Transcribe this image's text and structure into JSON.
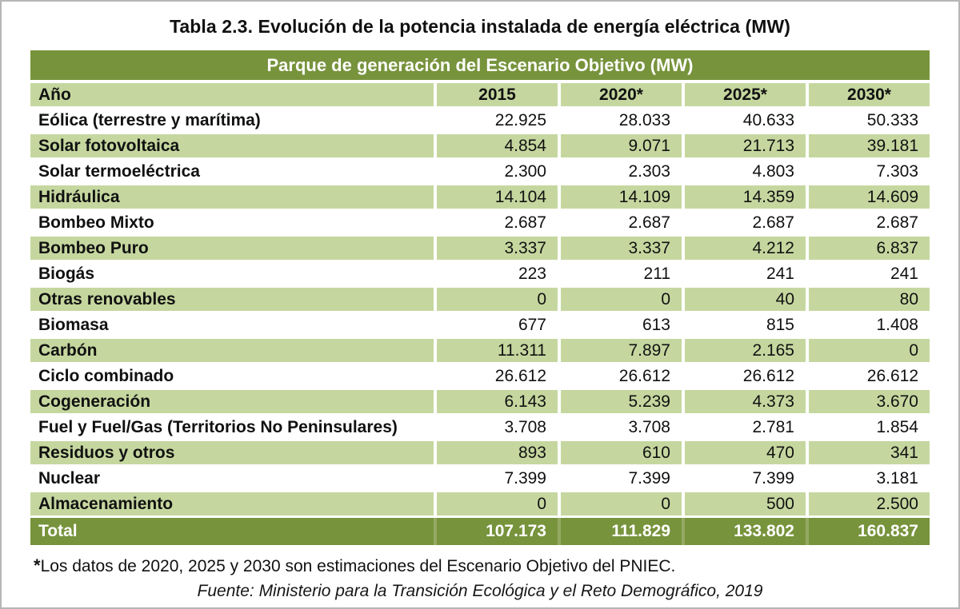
{
  "colors": {
    "header_green": "#77933C",
    "stripe_green": "#C5D79F",
    "total_text": "#FFFFFF",
    "body_text": "#111111",
    "page_border": "#B6B6B6"
  },
  "chart_data": {
    "type": "table",
    "title": "Tabla 2.3. Evolución de la potencia instalada de energía eléctrica (MW)",
    "subtitle": "Parque de generación del Escenario Objetivo (MW)",
    "row_header": "Año",
    "categories": [
      "2015",
      "2020*",
      "2025*",
      "2030*"
    ],
    "series": [
      {
        "name": "Eólica (terrestre y marítima)",
        "values": [
          "22.925",
          "28.033",
          "40.633",
          "50.333"
        ]
      },
      {
        "name": "Solar fotovoltaica",
        "values": [
          "4.854",
          "9.071",
          "21.713",
          "39.181"
        ]
      },
      {
        "name": "Solar termoeléctrica",
        "values": [
          "2.300",
          "2.303",
          "4.803",
          "7.303"
        ]
      },
      {
        "name": "Hidráulica",
        "values": [
          "14.104",
          "14.109",
          "14.359",
          "14.609"
        ]
      },
      {
        "name": "Bombeo Mixto",
        "values": [
          "2.687",
          "2.687",
          "2.687",
          "2.687"
        ]
      },
      {
        "name": "Bombeo Puro",
        "values": [
          "3.337",
          "3.337",
          "4.212",
          "6.837"
        ]
      },
      {
        "name": "Biogás",
        "values": [
          "223",
          "211",
          "241",
          "241"
        ]
      },
      {
        "name": "Otras renovables",
        "values": [
          "0",
          "0",
          "40",
          "80"
        ]
      },
      {
        "name": "Biomasa",
        "values": [
          "677",
          "613",
          "815",
          "1.408"
        ]
      },
      {
        "name": "Carbón",
        "values": [
          "11.311",
          "7.897",
          "2.165",
          "0"
        ]
      },
      {
        "name": "Ciclo combinado",
        "values": [
          "26.612",
          "26.612",
          "26.612",
          "26.612"
        ]
      },
      {
        "name": "Cogeneración",
        "values": [
          "6.143",
          "5.239",
          "4.373",
          "3.670"
        ]
      },
      {
        "name": "Fuel y Fuel/Gas (Territorios No Peninsulares)",
        "values": [
          "3.708",
          "3.708",
          "2.781",
          "1.854"
        ]
      },
      {
        "name": "Residuos y otros",
        "values": [
          "893",
          "610",
          "470",
          "341"
        ]
      },
      {
        "name": "Nuclear",
        "values": [
          "7.399",
          "7.399",
          "7.399",
          "3.181"
        ]
      },
      {
        "name": "Almacenamiento",
        "values": [
          "0",
          "0",
          "500",
          "2.500"
        ]
      }
    ],
    "total": {
      "name": "Total",
      "values": [
        "107.173",
        "111.829",
        "133.802",
        "160.837"
      ]
    },
    "footnote_marker": "*",
    "footnote": "Los datos de 2020, 2025 y 2030 son estimaciones del Escenario Objetivo del PNIEC.",
    "source": "Fuente: Ministerio para la Transición Ecológica y el Reto Demográfico, 2019",
    "layout": {
      "stripe_pattern": "alternating white/green starting white",
      "values_align": "right",
      "grid": "white column gaps"
    }
  }
}
